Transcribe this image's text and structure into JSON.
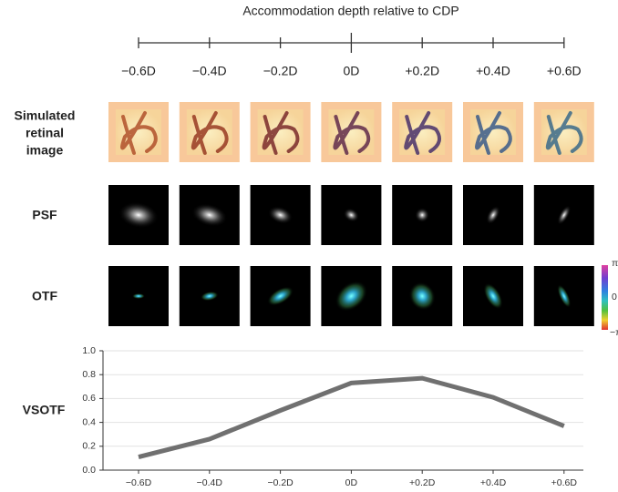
{
  "depth_axis": {
    "title": "Accommodation depth relative to CDP",
    "labels": [
      "−0.6D",
      "−0.4D",
      "−0.2D",
      "0D",
      "+0.2D",
      "+0.4D",
      "+0.6D"
    ]
  },
  "row_labels": {
    "retinal_image": [
      "Simulated",
      "retinal",
      "image"
    ],
    "psf": "PSF",
    "otf": "OTF"
  },
  "colorbar": {
    "labels": [
      "π",
      "0",
      "−π"
    ]
  },
  "chart_data": {
    "type": "line",
    "y_label": "VSOTF",
    "categories": [
      "−0.6D",
      "−0.4D",
      "−0.2D",
      "0D",
      "+0.2D",
      "+0.4D",
      "+0.6D"
    ],
    "series": [
      {
        "name": "VSOTF",
        "color": "#707070",
        "values": [
          0.11,
          0.26,
          0.5,
          0.73,
          0.77,
          0.61,
          0.37
        ]
      }
    ],
    "ylim": [
      0,
      1
    ],
    "yticks": [
      {
        "value": 0,
        "label": "0.0"
      },
      0.2,
      0.4,
      0.6,
      0.8,
      {
        "value": 1,
        "label": "1.0"
      }
    ],
    "grid": true
  }
}
